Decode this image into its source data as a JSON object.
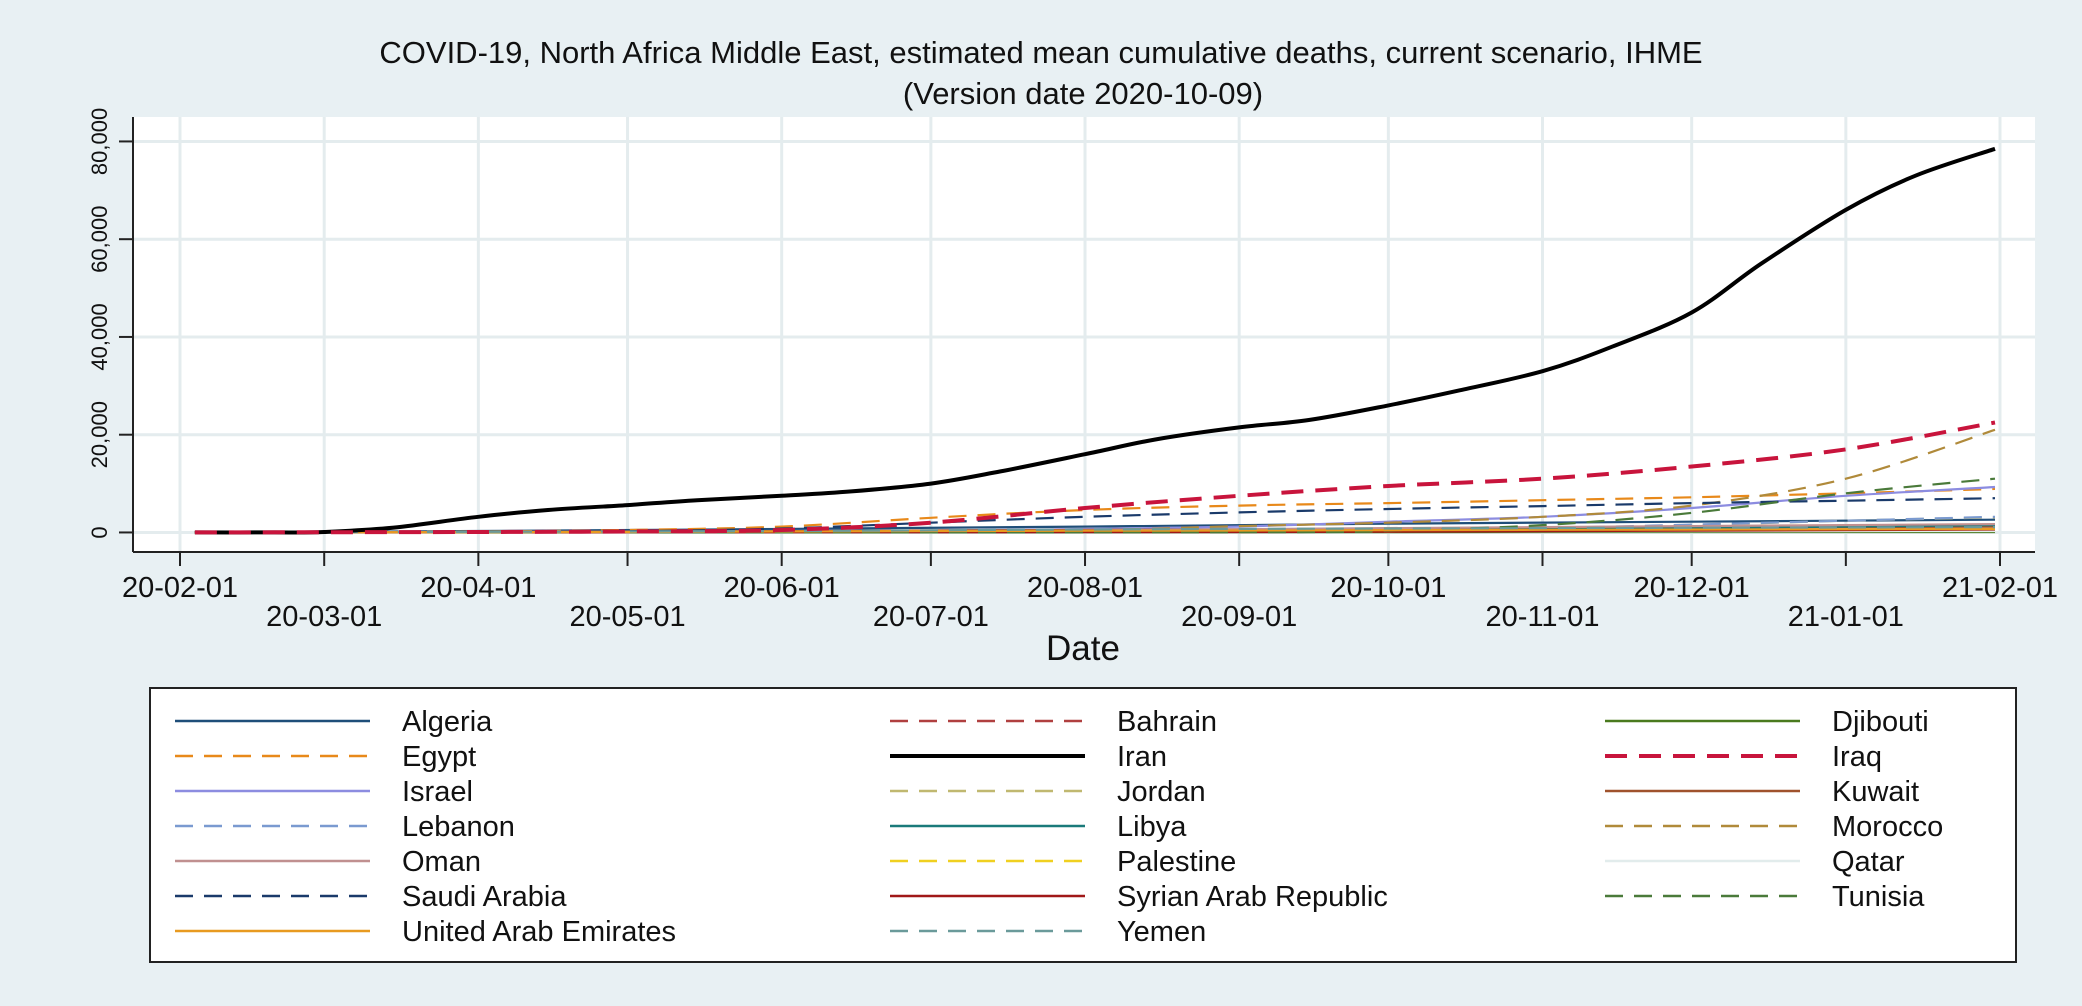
{
  "chart_data": {
    "type": "line",
    "title": "COVID-19, North Africa Middle East, estimated mean cumulative deaths, current scenario, IHME",
    "subtitle": "(Version date 2020-10-09)",
    "xlabel": "Date",
    "ylabel": "",
    "x_ticks": [
      "20-02-01",
      "20-03-01",
      "20-04-01",
      "20-05-01",
      "20-06-01",
      "20-07-01",
      "20-08-01",
      "20-09-01",
      "20-10-01",
      "20-11-01",
      "20-12-01",
      "21-01-01",
      "21-02-01"
    ],
    "y_ticks": [
      "0",
      "20,000",
      "40,000",
      "60,000",
      "80,000"
    ],
    "xlim": [
      "2020-02-01",
      "2021-02-01"
    ],
    "ylim": [
      -4000,
      85000
    ],
    "grid": true,
    "legend_position": "bottom",
    "legend_columns": 3,
    "series": [
      {
        "name": "Algeria",
        "color": "#1f4e79",
        "dash": "solid",
        "points": [
          [
            "2020-02-04",
            0
          ],
          [
            "2020-04-01",
            300
          ],
          [
            "2020-06-01",
            700
          ],
          [
            "2020-08-01",
            1200
          ],
          [
            "2020-10-01",
            1800
          ],
          [
            "2020-12-01",
            2200
          ],
          [
            "2021-01-31",
            2600
          ]
        ]
      },
      {
        "name": "Bahrain",
        "color": "#b04040",
        "dash": "dash",
        "points": [
          [
            "2020-02-04",
            0
          ],
          [
            "2020-06-01",
            50
          ],
          [
            "2020-08-01",
            150
          ],
          [
            "2020-10-01",
            250
          ],
          [
            "2020-12-01",
            400
          ],
          [
            "2021-01-31",
            550
          ]
        ]
      },
      {
        "name": "Djibouti",
        "color": "#4a7a1e",
        "dash": "solid",
        "points": [
          [
            "2020-02-04",
            0
          ],
          [
            "2020-06-01",
            50
          ],
          [
            "2020-10-01",
            70
          ],
          [
            "2021-01-31",
            100
          ]
        ]
      },
      {
        "name": "Egypt",
        "color": "#e8891a",
        "dash": "dash",
        "points": [
          [
            "2020-02-04",
            0
          ],
          [
            "2020-04-01",
            200
          ],
          [
            "2020-05-01",
            500
          ],
          [
            "2020-06-01",
            1200
          ],
          [
            "2020-07-01",
            3000
          ],
          [
            "2020-08-01",
            4600
          ],
          [
            "2020-09-01",
            5500
          ],
          [
            "2020-10-01",
            6000
          ],
          [
            "2020-11-01",
            6600
          ],
          [
            "2020-12-01",
            7200
          ],
          [
            "2021-01-01",
            8000
          ],
          [
            "2021-01-31",
            8900
          ]
        ]
      },
      {
        "name": "Iran",
        "color": "#000000",
        "dash": "solid",
        "width": 4,
        "points": [
          [
            "2020-02-04",
            0
          ],
          [
            "2020-02-20",
            0
          ],
          [
            "2020-03-01",
            100
          ],
          [
            "2020-03-15",
            1000
          ],
          [
            "2020-04-01",
            3200
          ],
          [
            "2020-04-15",
            4600
          ],
          [
            "2020-05-01",
            5600
          ],
          [
            "2020-05-15",
            6600
          ],
          [
            "2020-06-01",
            7500
          ],
          [
            "2020-06-15",
            8400
          ],
          [
            "2020-07-01",
            10000
          ],
          [
            "2020-07-15",
            12500
          ],
          [
            "2020-08-01",
            16000
          ],
          [
            "2020-08-15",
            19000
          ],
          [
            "2020-09-01",
            21500
          ],
          [
            "2020-09-15",
            23000
          ],
          [
            "2020-10-01",
            26000
          ],
          [
            "2020-10-15",
            29000
          ],
          [
            "2020-11-01",
            33000
          ],
          [
            "2020-11-15",
            38000
          ],
          [
            "2020-12-01",
            45000
          ],
          [
            "2020-12-15",
            55000
          ],
          [
            "2021-01-01",
            66000
          ],
          [
            "2021-01-15",
            73000
          ],
          [
            "2021-01-31",
            78500
          ]
        ]
      },
      {
        "name": "Iraq",
        "color": "#c8143c",
        "dash": "dash",
        "width": 4,
        "points": [
          [
            "2020-02-04",
            0
          ],
          [
            "2020-04-01",
            100
          ],
          [
            "2020-05-01",
            200
          ],
          [
            "2020-06-01",
            500
          ],
          [
            "2020-07-01",
            2000
          ],
          [
            "2020-08-01",
            5000
          ],
          [
            "2020-09-01",
            7500
          ],
          [
            "2020-10-01",
            9500
          ],
          [
            "2020-11-01",
            11000
          ],
          [
            "2020-12-01",
            13500
          ],
          [
            "2021-01-01",
            17000
          ],
          [
            "2021-01-31",
            22500
          ]
        ]
      },
      {
        "name": "Israel",
        "color": "#8c8ce0",
        "dash": "solid",
        "points": [
          [
            "2020-02-04",
            0
          ],
          [
            "2020-04-01",
            100
          ],
          [
            "2020-06-01",
            300
          ],
          [
            "2020-07-01",
            400
          ],
          [
            "2020-08-01",
            700
          ],
          [
            "2020-09-01",
            1200
          ],
          [
            "2020-10-01",
            2200
          ],
          [
            "2020-11-01",
            3200
          ],
          [
            "2020-12-01",
            5000
          ],
          [
            "2021-01-01",
            7500
          ],
          [
            "2021-01-31",
            9300
          ]
        ]
      },
      {
        "name": "Jordan",
        "color": "#c0b870",
        "dash": "dash",
        "points": [
          [
            "2020-02-04",
            0
          ],
          [
            "2020-08-01",
            20
          ],
          [
            "2020-09-01",
            60
          ],
          [
            "2020-10-01",
            200
          ],
          [
            "2020-11-01",
            700
          ],
          [
            "2020-12-01",
            1500
          ],
          [
            "2021-01-01",
            2400
          ],
          [
            "2021-01-31",
            3100
          ]
        ]
      },
      {
        "name": "Kuwait",
        "color": "#a0522d",
        "dash": "solid",
        "points": [
          [
            "2020-02-04",
            0
          ],
          [
            "2020-05-01",
            150
          ],
          [
            "2020-07-01",
            400
          ],
          [
            "2020-09-01",
            650
          ],
          [
            "2020-11-01",
            900
          ],
          [
            "2021-01-31",
            1200
          ]
        ]
      },
      {
        "name": "Lebanon",
        "color": "#7a9ad0",
        "dash": "dash",
        "points": [
          [
            "2020-02-04",
            0
          ],
          [
            "2020-08-01",
            100
          ],
          [
            "2020-09-01",
            250
          ],
          [
            "2020-10-01",
            450
          ],
          [
            "2020-11-01",
            900
          ],
          [
            "2020-12-01",
            1600
          ],
          [
            "2021-01-01",
            2400
          ],
          [
            "2021-01-31",
            3200
          ]
        ]
      },
      {
        "name": "Libya",
        "color": "#1a7a7a",
        "dash": "solid",
        "points": [
          [
            "2020-02-04",
            0
          ],
          [
            "2020-08-01",
            100
          ],
          [
            "2020-10-01",
            400
          ],
          [
            "2020-12-01",
            900
          ],
          [
            "2021-01-31",
            1500
          ]
        ]
      },
      {
        "name": "Morocco",
        "color": "#b08a3a",
        "dash": "dash",
        "points": [
          [
            "2020-02-04",
            0
          ],
          [
            "2020-04-01",
            100
          ],
          [
            "2020-06-01",
            200
          ],
          [
            "2020-08-01",
            500
          ],
          [
            "2020-09-01",
            1300
          ],
          [
            "2020-10-01",
            2000
          ],
          [
            "2020-11-01",
            3200
          ],
          [
            "2020-12-01",
            5500
          ],
          [
            "2021-01-01",
            11000
          ],
          [
            "2021-01-31",
            21000
          ]
        ]
      },
      {
        "name": "Oman",
        "color": "#c09090",
        "dash": "solid",
        "points": [
          [
            "2020-02-04",
            0
          ],
          [
            "2020-06-01",
            100
          ],
          [
            "2020-08-01",
            400
          ],
          [
            "2020-10-01",
            900
          ],
          [
            "2020-12-01",
            1300
          ],
          [
            "2021-01-31",
            1700
          ]
        ]
      },
      {
        "name": "Palestine",
        "color": "#f0d020",
        "dash": "dash",
        "points": [
          [
            "2020-02-04",
            0
          ],
          [
            "2020-08-01",
            50
          ],
          [
            "2020-10-01",
            200
          ],
          [
            "2020-12-01",
            500
          ],
          [
            "2021-01-31",
            900
          ]
        ]
      },
      {
        "name": "Qatar",
        "color": "#e2ecec",
        "dash": "solid",
        "points": [
          [
            "2020-02-04",
            0
          ],
          [
            "2020-06-01",
            80
          ],
          [
            "2020-08-01",
            180
          ],
          [
            "2020-10-01",
            230
          ],
          [
            "2021-01-31",
            300
          ]
        ]
      },
      {
        "name": "Saudi Arabia",
        "color": "#1a3a6a",
        "dash": "dash",
        "points": [
          [
            "2020-02-04",
            0
          ],
          [
            "2020-04-01",
            50
          ],
          [
            "2020-05-01",
            250
          ],
          [
            "2020-06-01",
            800
          ],
          [
            "2020-07-01",
            2000
          ],
          [
            "2020-08-01",
            3200
          ],
          [
            "2020-09-01",
            4100
          ],
          [
            "2020-10-01",
            4800
          ],
          [
            "2020-11-01",
            5400
          ],
          [
            "2020-12-01",
            6000
          ],
          [
            "2021-01-01",
            6500
          ],
          [
            "2021-01-31",
            7000
          ]
        ]
      },
      {
        "name": "Syrian Arab Republic",
        "color": "#a01818",
        "dash": "solid",
        "points": [
          [
            "2020-02-04",
            0
          ],
          [
            "2020-08-01",
            50
          ],
          [
            "2020-10-01",
            150
          ],
          [
            "2020-12-01",
            350
          ],
          [
            "2021-01-31",
            600
          ]
        ]
      },
      {
        "name": "Tunisia",
        "color": "#4a7a3a",
        "dash": "dash",
        "points": [
          [
            "2020-02-04",
            0
          ],
          [
            "2020-09-01",
            50
          ],
          [
            "2020-10-01",
            400
          ],
          [
            "2020-11-01",
            1500
          ],
          [
            "2020-12-01",
            4000
          ],
          [
            "2021-01-01",
            8000
          ],
          [
            "2021-01-31",
            11000
          ]
        ]
      },
      {
        "name": "United Arab Emirates",
        "color": "#e89a20",
        "dash": "solid",
        "points": [
          [
            "2020-02-04",
            0
          ],
          [
            "2020-05-01",
            100
          ],
          [
            "2020-07-01",
            300
          ],
          [
            "2020-09-01",
            400
          ],
          [
            "2020-11-01",
            550
          ],
          [
            "2021-01-31",
            700
          ]
        ]
      },
      {
        "name": "Yemen",
        "color": "#6a9a9a",
        "dash": "dash",
        "points": [
          [
            "2020-02-04",
            0
          ],
          [
            "2020-06-01",
            300
          ],
          [
            "2020-08-01",
            600
          ],
          [
            "2020-10-01",
            800
          ],
          [
            "2021-01-31",
            1100
          ]
        ]
      }
    ]
  }
}
